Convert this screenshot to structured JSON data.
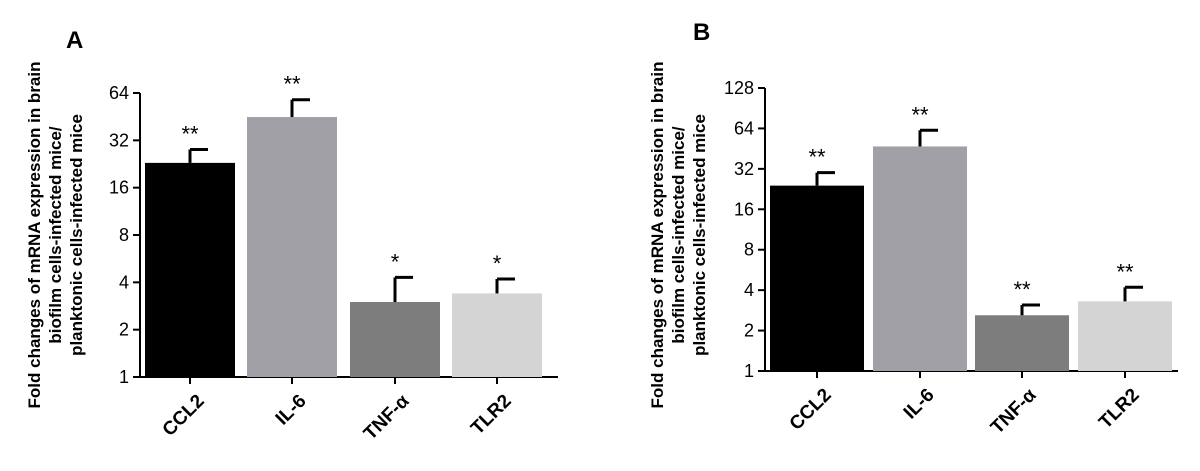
{
  "chart_data": [
    {
      "type": "bar",
      "panel": "A",
      "categories": [
        "CCL2",
        "IL-6",
        "TNF-α",
        "TLR2"
      ],
      "values": [
        23,
        45,
        3.0,
        3.4
      ],
      "errors": [
        5,
        13,
        1.3,
        0.8
      ],
      "significance": [
        "**",
        "**",
        "*",
        "*"
      ],
      "colors": [
        "#000000",
        "#a0a0a6",
        "#7d7d7d",
        "#d4d4d4"
      ],
      "yscale": "log2",
      "ylim": [
        1,
        64
      ],
      "yticks": [
        "1",
        "2",
        "4",
        "8",
        "16",
        "32",
        "64"
      ],
      "ylabel_lines": [
        "Fold changes of mRNA expression in brain",
        "biofilm cells-infected mice/",
        "planktonic cells-infected mice"
      ]
    },
    {
      "type": "bar",
      "panel": "B",
      "categories": [
        "CCL2",
        "IL-6",
        "TNF-α",
        "TLR2"
      ],
      "values": [
        24,
        47,
        2.6,
        3.3
      ],
      "errors": [
        6,
        15,
        0.5,
        0.9
      ],
      "significance": [
        "**",
        "**",
        "**",
        "**"
      ],
      "colors": [
        "#000000",
        "#a0a0a6",
        "#7d7d7d",
        "#d4d4d4"
      ],
      "yscale": "log2",
      "ylim": [
        1,
        128
      ],
      "yticks": [
        "1",
        "2",
        "4",
        "8",
        "16",
        "32",
        "64",
        "128"
      ],
      "ylabel_lines": [
        "Fold changes of mRNA expression in brain",
        "biofilm cells-infected mice/",
        "planktonic cells-infected mice"
      ]
    }
  ]
}
